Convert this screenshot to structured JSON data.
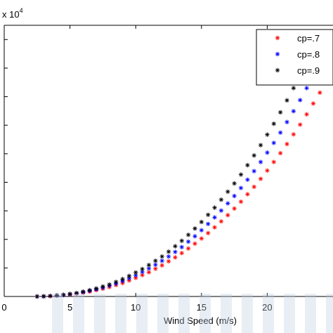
{
  "chart_data": {
    "type": "scatter",
    "title": "",
    "xlabel": "Wind Speed (m/s)",
    "ylabel": "",
    "y_multiplier": "x 10",
    "y_multiplier_exp": "4",
    "xlim": [
      0,
      25
    ],
    "ylim": [
      0,
      9.5
    ],
    "xticks": [
      0,
      5,
      10,
      15,
      20
    ],
    "xtick_labels": [
      "0",
      "5",
      "10",
      "15",
      "20"
    ],
    "yticks": [
      0,
      1,
      2,
      3,
      4,
      5,
      6,
      7,
      8,
      9
    ],
    "grid": false,
    "legend_position": "top-right",
    "marker": "asterisk",
    "series": [
      {
        "name": "cp=.7",
        "color": "#ff0000",
        "x": [
          2.5,
          3,
          3.5,
          4,
          4.5,
          5,
          5.5,
          6,
          6.5,
          7,
          7.5,
          8,
          8.5,
          9,
          9.5,
          10,
          10.5,
          11,
          11.5,
          12,
          12.5,
          13,
          13.5,
          14,
          14.5,
          15,
          15.5,
          16,
          16.5,
          17,
          17.5,
          18,
          18.5,
          19,
          19.5,
          20,
          20.5,
          21,
          21.5,
          22,
          22.5,
          23,
          23.5,
          24
        ],
        "y": [
          0.0,
          0.0,
          0.01,
          0.03,
          0.05,
          0.07,
          0.1,
          0.13,
          0.17,
          0.22,
          0.27,
          0.33,
          0.4,
          0.47,
          0.56,
          0.65,
          0.75,
          0.85,
          0.97,
          1.09,
          1.23,
          1.37,
          1.52,
          1.68,
          1.85,
          2.03,
          2.22,
          2.42,
          2.63,
          2.85,
          3.08,
          3.32,
          3.58,
          3.84,
          4.12,
          4.41,
          4.71,
          5.02,
          5.34,
          5.68,
          6.02,
          6.38,
          6.76,
          7.14
        ]
      },
      {
        "name": "cp=.8",
        "color": "#0000ff",
        "x": [
          2.5,
          3,
          3.5,
          4,
          4.5,
          5,
          5.5,
          6,
          6.5,
          7,
          7.5,
          8,
          8.5,
          9,
          9.5,
          10,
          10.5,
          11,
          11.5,
          12,
          12.5,
          13,
          13.5,
          14,
          14.5,
          15,
          15.5,
          16,
          16.5,
          17,
          17.5,
          18,
          18.5,
          19,
          19.5,
          20,
          20.5,
          21,
          21.5,
          22,
          22.5,
          23,
          23.5,
          24
        ],
        "y": [
          0.0,
          0.0,
          0.02,
          0.03,
          0.05,
          0.08,
          0.11,
          0.15,
          0.2,
          0.25,
          0.31,
          0.38,
          0.45,
          0.54,
          0.64,
          0.74,
          0.86,
          0.98,
          1.11,
          1.25,
          1.4,
          1.56,
          1.73,
          1.92,
          2.11,
          2.32,
          2.54,
          2.77,
          3.01,
          3.26,
          3.52,
          3.8,
          4.09,
          4.39,
          4.71,
          5.04,
          5.38,
          5.74,
          6.11,
          6.49,
          6.88,
          7.3,
          7.72,
          8.16
        ]
      },
      {
        "name": "cp=.9",
        "color": "#000000",
        "x": [
          2.5,
          3,
          3.5,
          4,
          4.5,
          5,
          5.5,
          6,
          6.5,
          7,
          7.5,
          8,
          8.5,
          9,
          9.5,
          10,
          10.5,
          11,
          11.5,
          12,
          12.5,
          13,
          13.5,
          14,
          14.5,
          15,
          15.5,
          16,
          16.5,
          17,
          17.5,
          18,
          18.5,
          19,
          19.5,
          20,
          20.5,
          21,
          21.5,
          22,
          22.5,
          23,
          23.5,
          24
        ],
        "y": [
          0.0,
          0.01,
          0.02,
          0.04,
          0.06,
          0.09,
          0.12,
          0.17,
          0.22,
          0.28,
          0.35,
          0.42,
          0.51,
          0.61,
          0.72,
          0.84,
          0.96,
          1.1,
          1.25,
          1.4,
          1.57,
          1.76,
          1.95,
          2.16,
          2.38,
          2.61,
          2.86,
          3.11,
          3.39,
          3.67,
          3.96,
          4.27,
          4.6,
          4.94,
          5.3,
          5.67,
          6.05,
          6.45,
          6.87,
          7.3,
          7.74,
          8.21,
          8.68,
          9.18
        ]
      }
    ]
  }
}
